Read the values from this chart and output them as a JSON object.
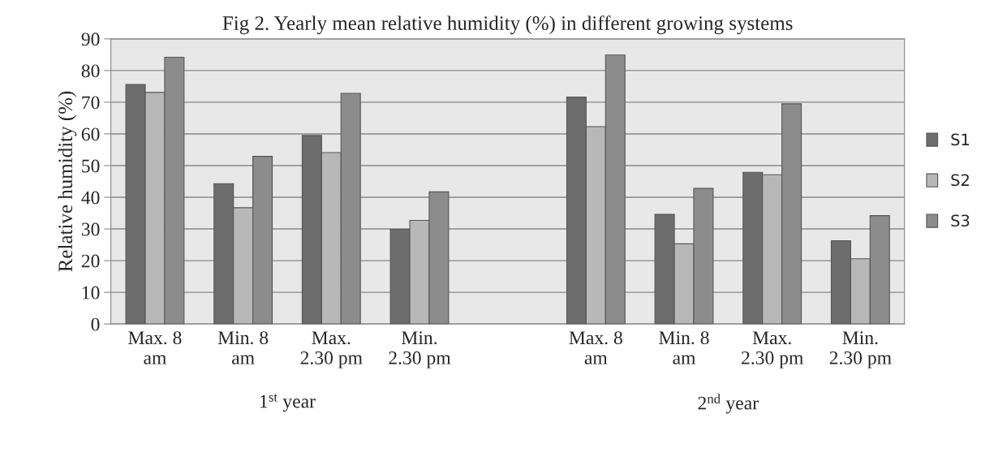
{
  "chart_data": {
    "type": "bar",
    "title": "Fig 2. Yearly mean relative humidity (%) in different growing systems",
    "ylabel": "Relative humidity (%)",
    "categories": [
      "Max. 8\nam",
      "Min. 8\nam",
      "Max.\n2.30 pm",
      "Min.\n2.30 pm",
      null,
      "Max. 8\nam",
      "Min. 8\nam",
      "Max.\n2.30 pm",
      "Min.\n2.30 pm"
    ],
    "series": [
      {
        "name": "S1",
        "color": "#6d6d6d",
        "values": [
          75.6,
          44.3,
          59.5,
          29.9,
          null,
          71.6,
          34.6,
          47.9,
          26.3
        ]
      },
      {
        "name": "S2",
        "color": "#b8b8b8",
        "values": [
          73.1,
          36.7,
          54.1,
          32.7,
          null,
          62.3,
          25.3,
          47.1,
          20.6
        ]
      },
      {
        "name": "S3",
        "color": "#8c8c8c",
        "values": [
          84.2,
          52.9,
          72.8,
          41.7,
          null,
          84.9,
          42.8,
          69.5,
          34.2
        ]
      }
    ],
    "annotations": [
      "1$^{st}$ year",
      "2$^{nd}$ year"
    ],
    "ylim": [
      0,
      90
    ],
    "yticks": [
      0,
      10,
      20,
      30,
      40,
      50,
      60,
      70,
      80,
      90
    ],
    "grid": "y",
    "legend": "right"
  }
}
